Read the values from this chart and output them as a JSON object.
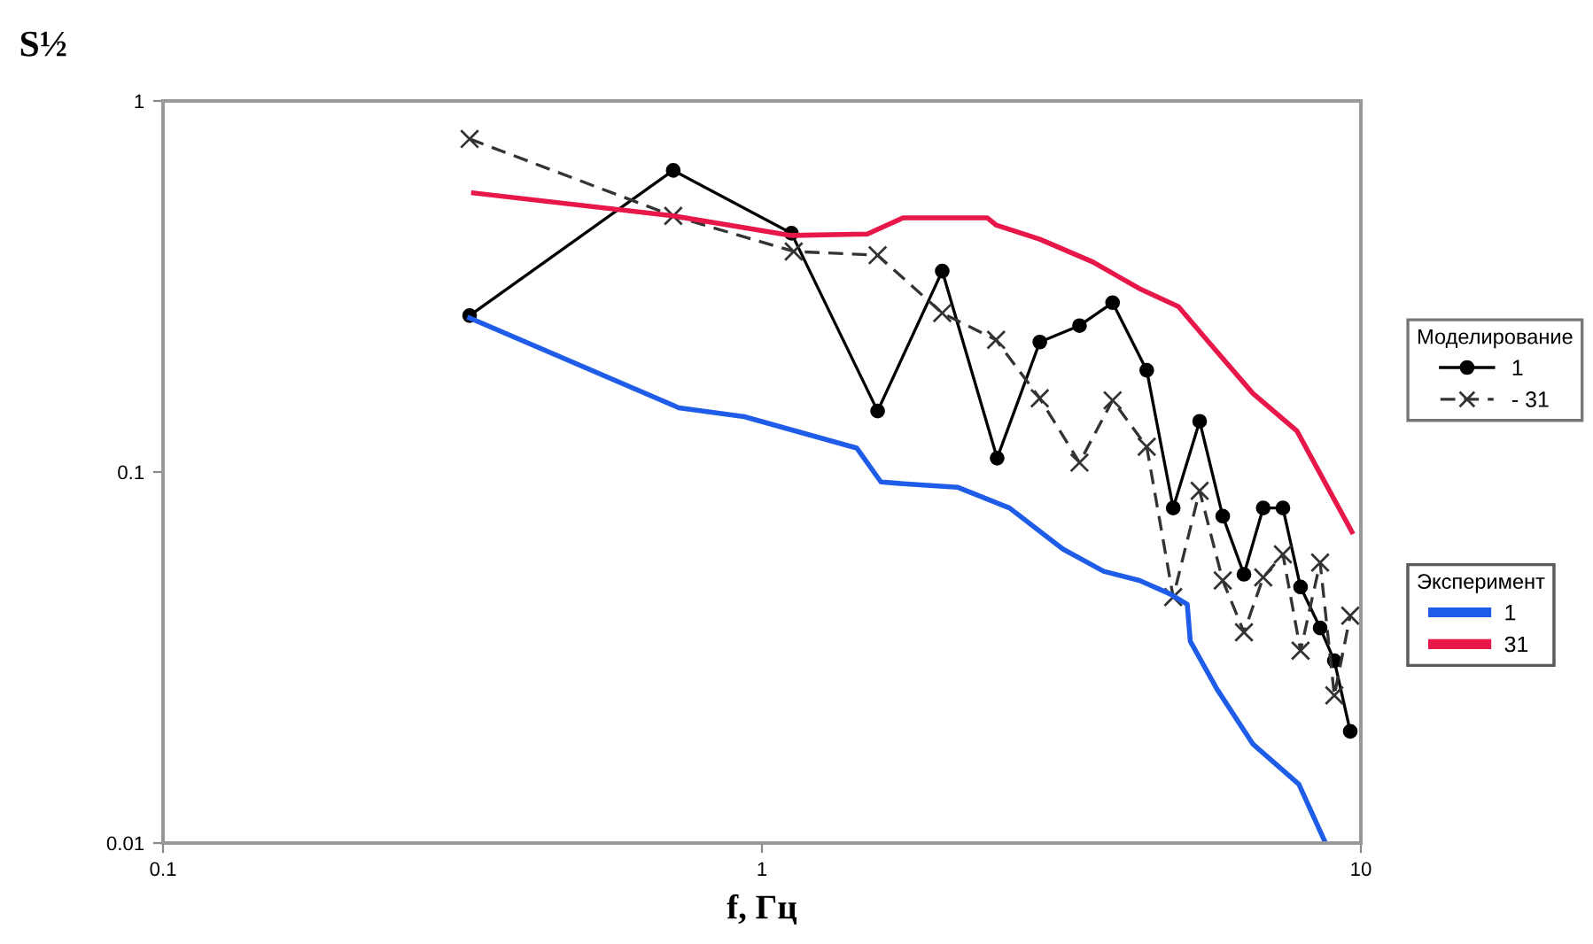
{
  "chart_data": {
    "type": "line",
    "xlabel": "f, Гц",
    "ylabel": "S½",
    "log": "xy",
    "xlim": [
      0.1,
      10
    ],
    "xticks": [
      0.1,
      1,
      10
    ],
    "ylim": [
      0.01,
      1
    ],
    "yticks": [
      0.01,
      0.1,
      1
    ],
    "grid": false,
    "legend": "right",
    "legend_title": [
      "Моделирование",
      "Эксперимент"
    ],
    "series": [
      {
        "name": "1",
        "color": "#000000",
        "marker": "circle",
        "line_style": "solid",
        "x": [
          0.325,
          0.711,
          1.12,
          1.56,
          2.0,
          2.47,
          2.91,
          3.39,
          3.85,
          4.39,
          4.86,
          5.38,
          5.88,
          6.38,
          6.87,
          7.41,
          7.93,
          8.55,
          9.03,
          9.6
        ],
        "values": [
          0.264,
          0.65,
          0.44,
          0.146,
          0.348,
          0.109,
          0.224,
          0.248,
          0.286,
          0.188,
          0.08,
          0.137,
          0.076,
          0.053,
          0.08,
          0.08,
          0.049,
          0.038,
          0.031,
          0.02
        ]
      },
      {
        "name": "- 31",
        "color": "#333333",
        "marker": "cross",
        "line_style": "dashed",
        "x": [
          0.325,
          0.711,
          1.13,
          1.56,
          2.0,
          2.46,
          2.91,
          3.39,
          3.85,
          4.39,
          4.86,
          5.38,
          5.88,
          6.38,
          6.87,
          7.41,
          7.93,
          8.55,
          9.03,
          9.6
        ],
        "values": [
          0.79,
          0.49,
          0.393,
          0.384,
          0.268,
          0.227,
          0.158,
          0.106,
          0.156,
          0.117,
          0.046,
          0.089,
          0.051,
          0.037,
          0.052,
          0.06,
          0.033,
          0.057,
          0.025,
          0.041
        ]
      },
      {
        "name": "1",
        "color": "#1f5de8",
        "marker": "none",
        "line_style": "solid",
        "x": [
          0.325,
          0.726,
          0.934,
          1.44,
          1.58,
          1.72,
          2.12,
          2.59,
          3.18,
          3.72,
          4.27,
          4.79,
          5.13,
          5.19,
          5.75,
          6.6,
          7.88,
          8.73
        ],
        "values": [
          0.26,
          0.149,
          0.141,
          0.116,
          0.094,
          0.093,
          0.091,
          0.08,
          0.062,
          0.054,
          0.051,
          0.047,
          0.044,
          0.035,
          0.026,
          0.0185,
          0.0144,
          0.01
        ]
      },
      {
        "name": "31",
        "color": "#e8174a",
        "marker": "none",
        "line_style": "solid",
        "x": [
          0.33,
          0.711,
          1.12,
          1.5,
          1.72,
          2.38,
          2.46,
          2.91,
          3.57,
          4.27,
          4.96,
          5.57,
          6.6,
          7.82,
          9.66
        ],
        "values": [
          0.565,
          0.49,
          0.434,
          0.438,
          0.484,
          0.484,
          0.463,
          0.424,
          0.368,
          0.312,
          0.279,
          0.224,
          0.163,
          0.129,
          0.069
        ]
      }
    ]
  }
}
